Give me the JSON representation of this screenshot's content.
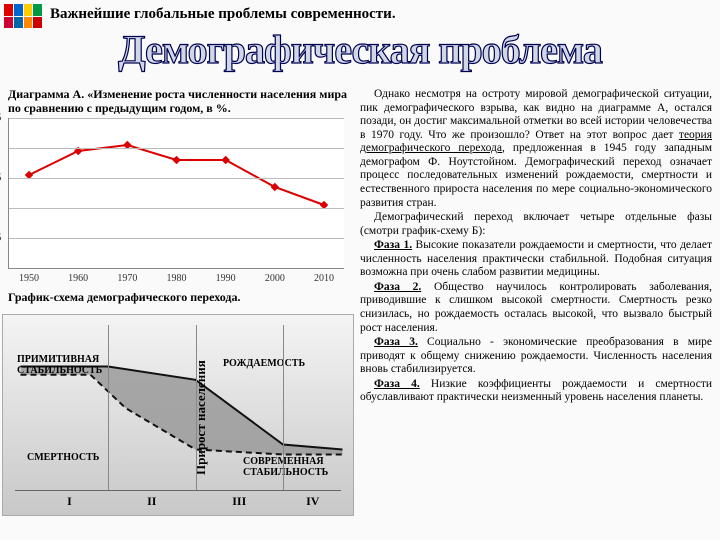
{
  "header_title": "Важнейшие глобальные проблемы современности.",
  "big_title": "Демографическая проблема",
  "chartA": {
    "caption": "Диаграмма А. «Изменение роста численности населения мира по сравнению с предыдущим годом, в %.",
    "type": "line",
    "x": [
      1950,
      1960,
      1970,
      1980,
      1990,
      2000,
      2010
    ],
    "y": [
      1.55,
      1.95,
      2.05,
      1.8,
      1.8,
      1.35,
      1.05
    ],
    "ylim": [
      0,
      2.5
    ],
    "ytick_step": 0.5,
    "line_color": "#dd0000",
    "marker_color": "#dd0000",
    "grid_color": "#bbbbbb",
    "background": "#ffffff"
  },
  "schema": {
    "caption": "График-схема демографического перехода.",
    "phases": [
      "I",
      "II",
      "III",
      "IV"
    ],
    "labels": {
      "primitive": "ПРИМИТИВНАЯ СТАБИЛЬНОСТЬ",
      "mortality": "СМЕРТНОСТЬ",
      "birthrate": "РОЖДАЕМОСТЬ",
      "modern": "СОВРЕМЕННАЯ СТАБИЛЬНОСТЬ",
      "growth": "Прирост населения"
    },
    "phase_x": [
      0.08,
      0.3,
      0.55,
      0.8
    ],
    "birth_curve": [
      [
        0.05,
        0.25
      ],
      [
        0.3,
        0.25
      ],
      [
        0.55,
        0.33
      ],
      [
        0.8,
        0.72
      ],
      [
        0.97,
        0.75
      ]
    ],
    "death_curve": [
      [
        0.05,
        0.3
      ],
      [
        0.25,
        0.3
      ],
      [
        0.35,
        0.5
      ],
      [
        0.55,
        0.75
      ],
      [
        0.8,
        0.78
      ],
      [
        0.97,
        0.78
      ]
    ],
    "fill": "#9a9a9a",
    "stroke": "#111",
    "bg_top": "#f4f4f4",
    "bg_bot": "#c8c8c8"
  },
  "flags_colors": [
    "#d00",
    "#06c",
    "#fc0",
    "#094",
    "#c03",
    "#06a",
    "#f80",
    "#c00"
  ],
  "text": {
    "p1": "Однако несмотря на остроту мировой демографической ситуации, пик демографического взрыва, как видно на диаграмме А, остался позади, он достиг максимальной отметки во всей истории человечества в 1970 году. Что же произошло? Ответ на этот вопрос дает ",
    "p1_u": "теория демографического перехода",
    "p1b": ", предложенная в 1945 году западным демографом Ф. Ноутстойном. Демографический переход означает процесс последовательных изменений рождаемости, смертности и естественного прироста населения по мере социально-экономического развития стран.",
    "p2": "Демографический переход включает четыре отдельные фазы (смотри график-схему Б):",
    "f1": "Фаза 1.",
    "f1t": " Высокие показатели рождаемости и смертности, что делает численность населения практически стабильной. Подобная ситуация возможна при очень слабом развитии медицины.",
    "f2": "Фаза 2.",
    "f2t": " Общество научилось контролировать заболевания, приводившие к слишком высокой смертности. Смертность резко снизилась, но рождаемость осталась высокой, что вызвало быстрый рост населения.",
    "f3": "Фаза 3.",
    "f3t": " Социально - экономические преобразования в мире приводят к общему снижению рождаемости. Численность населения вновь стабилизируется.",
    "f4": "Фаза 4.",
    "f4t": " Низкие коэффициенты рождаемости и смертности обуславливают практически неизменный уровень населения планеты."
  }
}
